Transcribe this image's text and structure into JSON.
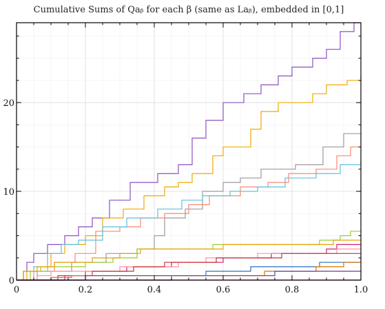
{
  "chart_data": {
    "type": "line",
    "step": true,
    "title": "Cumulative Sums of Qaᵦ for each β (same as Laᵦ), embedded in [0,1]",
    "xlabel": "",
    "ylabel": "",
    "xlim": [
      0,
      1
    ],
    "ylim": [
      0,
      29
    ],
    "xticks": [
      0,
      0.2,
      0.4,
      0.6,
      0.8,
      1.0
    ],
    "xtick_labels": [
      "0",
      "0.2",
      "0.4",
      "0.6",
      "0.8",
      "1.0"
    ],
    "yticks": [
      0,
      10,
      20
    ],
    "ytick_labels": [
      "0",
      "10",
      "20"
    ],
    "grid": true,
    "series": [
      {
        "color": "#8a4fc0",
        "points": [
          [
            0,
            0
          ],
          [
            0.02,
            1
          ],
          [
            0.03,
            2
          ],
          [
            0.05,
            3
          ],
          [
            0.09,
            4
          ],
          [
            0.14,
            5
          ],
          [
            0.18,
            6
          ],
          [
            0.22,
            7
          ],
          [
            0.27,
            9
          ],
          [
            0.33,
            11
          ],
          [
            0.41,
            12
          ],
          [
            0.47,
            13
          ],
          [
            0.51,
            16
          ],
          [
            0.55,
            18
          ],
          [
            0.6,
            20
          ],
          [
            0.66,
            21
          ],
          [
            0.71,
            22
          ],
          [
            0.76,
            23
          ],
          [
            0.8,
            24
          ],
          [
            0.86,
            25
          ],
          [
            0.9,
            26
          ],
          [
            0.94,
            28
          ],
          [
            0.98,
            29
          ],
          [
            1,
            29
          ]
        ]
      },
      {
        "color": "#f0a800",
        "points": [
          [
            0,
            0
          ],
          [
            0.03,
            1
          ],
          [
            0.07,
            1.5
          ],
          [
            0.1,
            3
          ],
          [
            0.14,
            4
          ],
          [
            0.2,
            5
          ],
          [
            0.25,
            7
          ],
          [
            0.31,
            8
          ],
          [
            0.37,
            9.5
          ],
          [
            0.43,
            10.5
          ],
          [
            0.47,
            11
          ],
          [
            0.51,
            12
          ],
          [
            0.57,
            14
          ],
          [
            0.6,
            15
          ],
          [
            0.68,
            17
          ],
          [
            0.71,
            19
          ],
          [
            0.76,
            20
          ],
          [
            0.86,
            21
          ],
          [
            0.9,
            22
          ],
          [
            0.96,
            22.5
          ],
          [
            1,
            23
          ]
        ]
      },
      {
        "color": "#9a9a9a",
        "points": [
          [
            0,
            0
          ],
          [
            0.06,
            1
          ],
          [
            0.16,
            2
          ],
          [
            0.26,
            3
          ],
          [
            0.35,
            3.5
          ],
          [
            0.4,
            5
          ],
          [
            0.43,
            7
          ],
          [
            0.49,
            8
          ],
          [
            0.54,
            10
          ],
          [
            0.6,
            11
          ],
          [
            0.65,
            11.5
          ],
          [
            0.71,
            12.5
          ],
          [
            0.81,
            13
          ],
          [
            0.89,
            15
          ],
          [
            0.95,
            16.5
          ],
          [
            1,
            16.5
          ]
        ]
      },
      {
        "color": "#fa8870",
        "points": [
          [
            0,
            0
          ],
          [
            0.05,
            1
          ],
          [
            0.11,
            2
          ],
          [
            0.17,
            3
          ],
          [
            0.23,
            5.5
          ],
          [
            0.3,
            6
          ],
          [
            0.36,
            7
          ],
          [
            0.43,
            7.5
          ],
          [
            0.5,
            8.5
          ],
          [
            0.56,
            9.5
          ],
          [
            0.65,
            10.5
          ],
          [
            0.73,
            11
          ],
          [
            0.79,
            12
          ],
          [
            0.87,
            12.5
          ],
          [
            0.93,
            14
          ],
          [
            0.97,
            15
          ],
          [
            1,
            15
          ]
        ]
      },
      {
        "color": "#5cc0dc",
        "points": [
          [
            0,
            0
          ],
          [
            0.02,
            1
          ],
          [
            0.05,
            1.5
          ],
          [
            0.09,
            3
          ],
          [
            0.13,
            4
          ],
          [
            0.18,
            4.5
          ],
          [
            0.25,
            6
          ],
          [
            0.32,
            7
          ],
          [
            0.41,
            8
          ],
          [
            0.48,
            9
          ],
          [
            0.54,
            9.5
          ],
          [
            0.62,
            10
          ],
          [
            0.7,
            10.5
          ],
          [
            0.78,
            11.5
          ],
          [
            0.87,
            12
          ],
          [
            0.94,
            13
          ],
          [
            1,
            13.5
          ]
        ]
      },
      {
        "color": "#9acd32",
        "points": [
          [
            0,
            0
          ],
          [
            0.04,
            1
          ],
          [
            0.09,
            1.5
          ],
          [
            0.2,
            2
          ],
          [
            0.28,
            2.5
          ],
          [
            0.35,
            3.5
          ],
          [
            0.5,
            3.5
          ],
          [
            0.57,
            4
          ],
          [
            0.82,
            4
          ],
          [
            0.88,
            4.5
          ],
          [
            0.94,
            5
          ],
          [
            0.97,
            5.5
          ],
          [
            1,
            5.5
          ]
        ]
      },
      {
        "color": "#e8a000",
        "points": [
          [
            0,
            0
          ],
          [
            0.02,
            1
          ],
          [
            0.06,
            1.5
          ],
          [
            0.11,
            2
          ],
          [
            0.22,
            2.5
          ],
          [
            0.3,
            3
          ],
          [
            0.36,
            3.5
          ],
          [
            0.55,
            3.5
          ],
          [
            0.6,
            4
          ],
          [
            0.85,
            4
          ],
          [
            0.92,
            4.5
          ],
          [
            1,
            4.5
          ]
        ]
      },
      {
        "color": "#d41a6e",
        "points": [
          [
            0,
            0
          ],
          [
            0.14,
            0.5
          ],
          [
            0.2,
            1
          ],
          [
            0.32,
            1.5
          ],
          [
            0.45,
            2
          ],
          [
            0.6,
            2.5
          ],
          [
            0.69,
            2.5
          ],
          [
            0.74,
            3
          ],
          [
            0.9,
            3.5
          ],
          [
            0.93,
            4
          ],
          [
            1,
            4
          ]
        ]
      },
      {
        "color": "#ff90a8",
        "points": [
          [
            0,
            0
          ],
          [
            0.06,
            0.5
          ],
          [
            0.1,
            1
          ],
          [
            0.3,
            1.5
          ],
          [
            0.47,
            2
          ],
          [
            0.55,
            2.5
          ],
          [
            0.7,
            3
          ],
          [
            0.86,
            3
          ],
          [
            0.93,
            3.5
          ],
          [
            0.97,
            3.5
          ],
          [
            1,
            3.5
          ]
        ]
      },
      {
        "color": "#c83232",
        "points": [
          [
            0,
            0
          ],
          [
            0.12,
            0.5
          ],
          [
            0.22,
            1
          ],
          [
            0.34,
            1.5
          ],
          [
            0.43,
            2
          ],
          [
            0.58,
            2.5
          ],
          [
            0.77,
            3
          ],
          [
            0.9,
            3
          ],
          [
            1,
            3
          ]
        ]
      },
      {
        "color": "#2a73c0",
        "points": [
          [
            0,
            0
          ],
          [
            0.32,
            0
          ],
          [
            0.45,
            0.5
          ],
          [
            0.55,
            1
          ],
          [
            0.68,
            1.5
          ],
          [
            0.82,
            1.5
          ],
          [
            0.88,
            2
          ],
          [
            0.95,
            2
          ],
          [
            1,
            2
          ]
        ]
      },
      {
        "color": "#e07000",
        "points": [
          [
            0,
            0
          ],
          [
            0.1,
            0.3
          ],
          [
            0.16,
            0.5
          ],
          [
            0.28,
            0.5
          ],
          [
            0.46,
            0.5
          ],
          [
            0.6,
            0.5
          ],
          [
            0.72,
            1
          ],
          [
            0.87,
            1.5
          ],
          [
            0.95,
            2
          ],
          [
            1,
            2
          ]
        ]
      },
      {
        "color": "#6c3a8c",
        "points": [
          [
            0,
            0
          ],
          [
            0.13,
            0
          ],
          [
            0.2,
            0.5
          ],
          [
            0.4,
            0.5
          ],
          [
            0.6,
            0.5
          ],
          [
            0.75,
            1
          ],
          [
            0.92,
            1
          ],
          [
            1,
            1
          ]
        ]
      },
      {
        "color": "#c0106a",
        "points": [
          [
            0,
            0
          ],
          [
            1,
            0
          ]
        ]
      }
    ]
  }
}
